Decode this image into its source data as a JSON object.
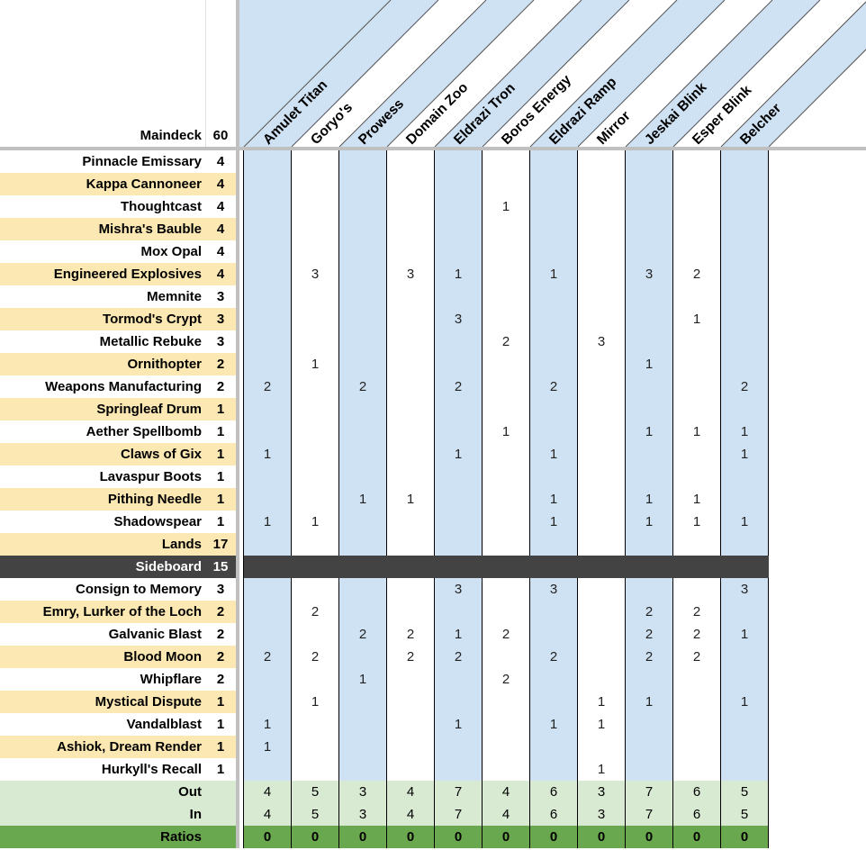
{
  "header": {
    "label": "Maindeck",
    "count": "60"
  },
  "matchups": [
    "Amulet Titan",
    "Goryo's",
    "Prowess",
    "Domain Zoo",
    "Eldrazi Tron",
    "Boros Energy",
    "Eldrazi Ramp",
    "Mirror",
    "Jeskai Blink",
    "Esper Blink",
    "Belcher"
  ],
  "maindeck": [
    {
      "name": "Pinnacle Emissary",
      "count": "4",
      "values": [
        "",
        "",
        "",
        "",
        "",
        "",
        "",
        "",
        "",
        "",
        ""
      ]
    },
    {
      "name": "Kappa Cannoneer",
      "count": "4",
      "values": [
        "",
        "",
        "",
        "",
        "",
        "",
        "",
        "",
        "",
        "",
        ""
      ]
    },
    {
      "name": "Thoughtcast",
      "count": "4",
      "values": [
        "",
        "",
        "",
        "",
        "",
        "1",
        "",
        "",
        "",
        "",
        ""
      ]
    },
    {
      "name": "Mishra's Bauble",
      "count": "4",
      "values": [
        "",
        "",
        "",
        "",
        "",
        "",
        "",
        "",
        "",
        "",
        ""
      ]
    },
    {
      "name": "Mox Opal",
      "count": "4",
      "values": [
        "",
        "",
        "",
        "",
        "",
        "",
        "",
        "",
        "",
        "",
        ""
      ]
    },
    {
      "name": "Engineered Explosives",
      "count": "4",
      "values": [
        "",
        "3",
        "",
        "3",
        "1",
        "",
        "1",
        "",
        "3",
        "2",
        ""
      ]
    },
    {
      "name": "Memnite",
      "count": "3",
      "values": [
        "",
        "",
        "",
        "",
        "",
        "",
        "",
        "",
        "",
        "",
        ""
      ]
    },
    {
      "name": "Tormod's Crypt",
      "count": "3",
      "values": [
        "",
        "",
        "",
        "",
        "3",
        "",
        "",
        "",
        "",
        "1",
        ""
      ]
    },
    {
      "name": "Metallic Rebuke",
      "count": "3",
      "values": [
        "",
        "",
        "",
        "",
        "",
        "2",
        "",
        "3",
        "",
        "",
        ""
      ]
    },
    {
      "name": "Ornithopter",
      "count": "2",
      "values": [
        "",
        "1",
        "",
        "",
        "",
        "",
        "",
        "",
        "1",
        "",
        ""
      ]
    },
    {
      "name": "Weapons Manufacturing",
      "count": "2",
      "values": [
        "2",
        "",
        "2",
        "",
        "2",
        "",
        "2",
        "",
        "",
        "",
        "2"
      ]
    },
    {
      "name": "Springleaf Drum",
      "count": "1",
      "values": [
        "",
        "",
        "",
        "",
        "",
        "",
        "",
        "",
        "",
        "",
        ""
      ]
    },
    {
      "name": "Aether Spellbomb",
      "count": "1",
      "values": [
        "",
        "",
        "",
        "",
        "",
        "1",
        "",
        "",
        "1",
        "1",
        "1"
      ]
    },
    {
      "name": "Claws of Gix",
      "count": "1",
      "values": [
        "1",
        "",
        "",
        "",
        "1",
        "",
        "1",
        "",
        "",
        "",
        "1"
      ]
    },
    {
      "name": "Lavaspur Boots",
      "count": "1",
      "values": [
        "",
        "",
        "",
        "",
        "",
        "",
        "",
        "",
        "",
        "",
        ""
      ]
    },
    {
      "name": "Pithing Needle",
      "count": "1",
      "values": [
        "",
        "",
        "1",
        "1",
        "",
        "",
        "1",
        "",
        "1",
        "1",
        ""
      ]
    },
    {
      "name": "Shadowspear",
      "count": "1",
      "values": [
        "1",
        "1",
        "",
        "",
        "",
        "",
        "1",
        "",
        "1",
        "1",
        "1"
      ]
    },
    {
      "name": "Lands",
      "count": "17",
      "values": [
        "",
        "",
        "",
        "",
        "",
        "",
        "",
        "",
        "",
        "",
        ""
      ]
    }
  ],
  "sideboard_header": {
    "label": "Sideboard",
    "count": "15"
  },
  "sideboard": [
    {
      "name": "Consign to Memory",
      "count": "3",
      "values": [
        "",
        "",
        "",
        "",
        "3",
        "",
        "3",
        "",
        "",
        "",
        "3"
      ]
    },
    {
      "name": "Emry, Lurker of the Loch",
      "count": "2",
      "values": [
        "",
        "2",
        "",
        "",
        "",
        "",
        "",
        "",
        "2",
        "2",
        ""
      ]
    },
    {
      "name": "Galvanic Blast",
      "count": "2",
      "values": [
        "",
        "",
        "2",
        "2",
        "1",
        "2",
        "",
        "",
        "2",
        "2",
        "1"
      ]
    },
    {
      "name": "Blood Moon",
      "count": "2",
      "values": [
        "2",
        "2",
        "",
        "2",
        "2",
        "",
        "2",
        "",
        "2",
        "2",
        ""
      ]
    },
    {
      "name": "Whipflare",
      "count": "2",
      "values": [
        "",
        "",
        "1",
        "",
        "",
        "2",
        "",
        "",
        "",
        "",
        ""
      ]
    },
    {
      "name": "Mystical Dispute",
      "count": "1",
      "values": [
        "",
        "1",
        "",
        "",
        "",
        "",
        "",
        "1",
        "1",
        "",
        "1"
      ]
    },
    {
      "name": "Vandalblast",
      "count": "1",
      "values": [
        "1",
        "",
        "",
        "",
        "1",
        "",
        "1",
        "1",
        "",
        "",
        ""
      ]
    },
    {
      "name": "Ashiok, Dream Render",
      "count": "1",
      "values": [
        "1",
        "",
        "",
        "",
        "",
        "",
        "",
        "",
        "",
        "",
        ""
      ]
    },
    {
      "name": "Hurkyll's Recall",
      "count": "1",
      "values": [
        "",
        "",
        "",
        "",
        "",
        "",
        "",
        "1",
        "",
        "",
        ""
      ]
    }
  ],
  "summary": [
    {
      "label": "Out",
      "values": [
        "4",
        "5",
        "3",
        "4",
        "7",
        "4",
        "6",
        "3",
        "7",
        "6",
        "5"
      ]
    },
    {
      "label": "In",
      "values": [
        "4",
        "5",
        "3",
        "4",
        "7",
        "4",
        "6",
        "3",
        "7",
        "6",
        "5"
      ]
    },
    {
      "label": "Ratios",
      "values": [
        "0",
        "0",
        "0",
        "0",
        "0",
        "0",
        "0",
        "0",
        "0",
        "0",
        "0"
      ]
    }
  ],
  "colors": {
    "yellow_row": "#fce8b2",
    "blue_column": "#cfe2f3",
    "summary_green": "#d9ead3",
    "ratio_green": "#6aa84f",
    "sideboard_bar": "#434343",
    "grid": "#000000"
  }
}
